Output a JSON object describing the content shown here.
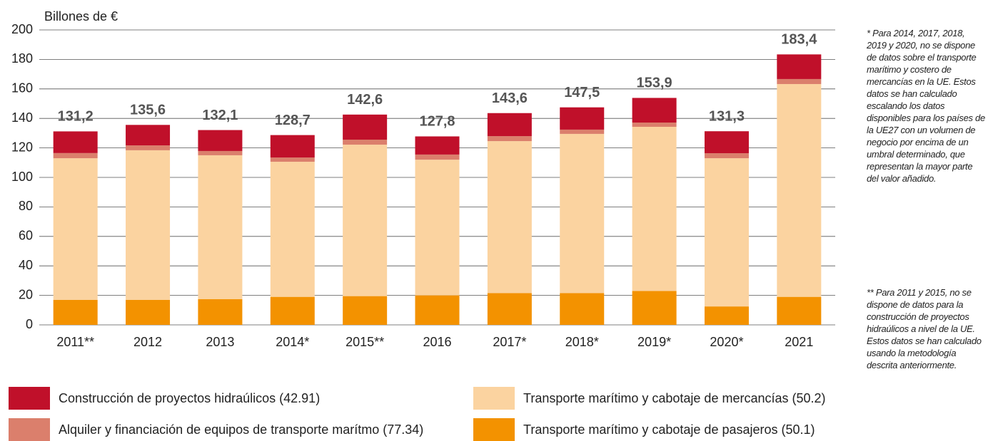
{
  "chart_data": {
    "type": "stacked_bar",
    "y_axis_label": "Billones de €",
    "categories": [
      "2011**",
      "2012",
      "2013",
      "2014*",
      "2015**",
      "2016",
      "2017*",
      "2018*",
      "2019*",
      "2020*",
      "2021"
    ],
    "series": [
      {
        "name": "Transporte marítimo y cabotaje de pasajeros (50.1)",
        "color": "#f39200",
        "values": [
          17,
          17,
          17.5,
          19,
          19.5,
          20,
          21.5,
          21.5,
          23,
          12.5,
          19
        ]
      },
      {
        "name": "Transporte marítimo y cabotaje de mercancías (50.2)",
        "color": "#fbd3a0",
        "values": [
          96,
          101.4,
          97.5,
          91.6,
          102.7,
          92,
          103.1,
          108,
          111.3,
          100.5,
          144.3
        ]
      },
      {
        "name": "Alquiler y financiación de equipos de transporte marítmo (77.34)",
        "color": "#db7f6c",
        "values": [
          3.5,
          3.3,
          2.9,
          2.9,
          3.4,
          3.5,
          3.4,
          2.9,
          2.9,
          3.4,
          3.4
        ]
      },
      {
        "name": "Construcción de proyectos hidraúlicos (42.91)",
        "color": "#c0102a",
        "values": [
          14.7,
          13.9,
          14.2,
          15.2,
          17,
          12.3,
          15.6,
          15.1,
          16.7,
          14.9,
          16.7
        ]
      }
    ],
    "totals": [
      131.2,
      135.6,
      132.1,
      128.7,
      142.6,
      127.8,
      143.6,
      147.5,
      153.9,
      131.3,
      183.4
    ],
    "total_labels": [
      "131,2",
      "135,6",
      "132,1",
      "128,7",
      "142,6",
      "127,8",
      "143,6",
      "147,5",
      "153,9",
      "131,3",
      "183,4"
    ],
    "ylim": [
      0,
      200
    ],
    "yticks": [
      0,
      20,
      40,
      60,
      80,
      100,
      120,
      140,
      160,
      180,
      200
    ],
    "grid": true,
    "notes": [
      "* Para 2014, 2017, 2018, 2019 y 2020, no se dispone de datos sobre el transporte marítimo y costero de mercancías en la UE. Estos datos se han calculado escalando los datos disponibles para los países de la UE27 con un volumen de negocio por encima de un umbral determinado, que representan la mayor parte del valor añadido.",
      "** Para 2011 y 2015, no se dispone de datos para la construcción de proyectos hidraúlicos a nivel de la UE. Estos datos se han calculado usando la metodología descrita anteriormente."
    ]
  }
}
